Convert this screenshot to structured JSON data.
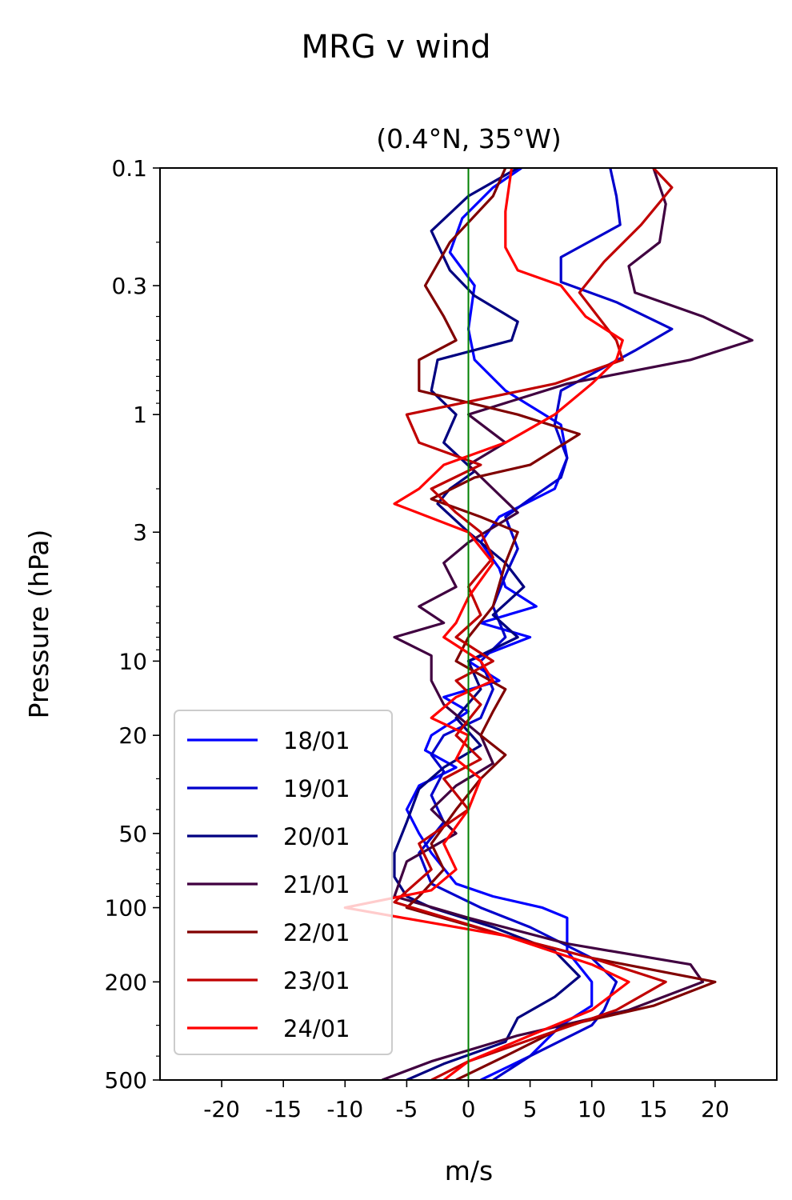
{
  "chart_data": {
    "type": "line",
    "suptitle": "MRG v wind",
    "title": "(0.4°N, 35°W)",
    "xlabel": "m/s",
    "ylabel": "Pressure (hPa)",
    "xlim": [
      -25,
      25
    ],
    "ylim": [
      500,
      0.1
    ],
    "yscale": "log",
    "xticks": [
      -20,
      -15,
      -10,
      -5,
      0,
      5,
      10,
      15,
      20
    ],
    "xtick_labels": [
      "-20",
      "-15",
      "-10",
      "-5",
      "0",
      "5",
      "10",
      "15",
      "20"
    ],
    "yticks": [
      0.1,
      0.3,
      1,
      3,
      10,
      20,
      50,
      100,
      200,
      500
    ],
    "ytick_labels": [
      "0.1",
      "0.3",
      "1",
      "3",
      "10",
      "20",
      "50",
      "100",
      "200",
      "500"
    ],
    "reference_line": {
      "x": 0,
      "color": "#008000"
    },
    "legend_position": "lower-left",
    "grid": false,
    "series": [
      {
        "name": "18/01",
        "color": "#0000ff",
        "points": [
          [
            4.3,
            0.1
          ],
          [
            2,
            0.12
          ],
          [
            -0.5,
            0.16
          ],
          [
            -1.5,
            0.22
          ],
          [
            0.5,
            0.3
          ],
          [
            0,
            0.45
          ],
          [
            0.5,
            0.6
          ],
          [
            3,
            0.8
          ],
          [
            7.5,
            1.1
          ],
          [
            8,
            1.5
          ],
          [
            7,
            2.0
          ],
          [
            2.5,
            2.6
          ],
          [
            1,
            3.3
          ],
          [
            2.5,
            4.2
          ],
          [
            3,
            5.0
          ],
          [
            5.5,
            6.0
          ],
          [
            1,
            7.0
          ],
          [
            5,
            8.0
          ],
          [
            0,
            10
          ],
          [
            2.5,
            12
          ],
          [
            -2,
            14
          ],
          [
            0,
            16
          ],
          [
            -3,
            20
          ],
          [
            -3.5,
            23
          ],
          [
            -1,
            27
          ],
          [
            -4,
            32
          ],
          [
            -5,
            40
          ],
          [
            -4,
            50
          ],
          [
            -3,
            60
          ],
          [
            -1,
            80
          ],
          [
            2,
            90
          ],
          [
            6,
            100
          ],
          [
            8,
            110
          ],
          [
            8,
            150
          ],
          [
            10,
            200
          ],
          [
            10,
            250
          ],
          [
            7.5,
            300
          ],
          [
            5,
            400
          ],
          [
            1,
            500
          ]
        ]
      },
      {
        "name": "19/01",
        "color": "#0000cc",
        "points": [
          [
            11.5,
            0.1
          ],
          [
            12,
            0.13
          ],
          [
            12.3,
            0.17
          ],
          [
            7.5,
            0.23
          ],
          [
            7.5,
            0.29
          ],
          [
            12,
            0.35
          ],
          [
            16.5,
            0.45
          ],
          [
            13.5,
            0.55
          ],
          [
            7.5,
            0.8
          ],
          [
            7,
            1.1
          ],
          [
            8,
            1.5
          ],
          [
            7.5,
            1.8
          ],
          [
            5,
            2.2
          ],
          [
            3,
            2.6
          ],
          [
            4,
            3.5
          ],
          [
            3,
            4.5
          ],
          [
            2,
            6.0
          ],
          [
            3,
            8.0
          ],
          [
            1,
            10
          ],
          [
            2,
            13
          ],
          [
            1,
            17
          ],
          [
            -2,
            20
          ],
          [
            -3,
            24
          ],
          [
            -2,
            28
          ],
          [
            -3,
            35
          ],
          [
            -2,
            45
          ],
          [
            -4,
            60
          ],
          [
            -3,
            80
          ],
          [
            1,
            100
          ],
          [
            5,
            120
          ],
          [
            10,
            160
          ],
          [
            12,
            200
          ],
          [
            11,
            260
          ],
          [
            10,
            300
          ],
          [
            5,
            400
          ],
          [
            2,
            500
          ]
        ]
      },
      {
        "name": "20/01",
        "color": "#000080",
        "points": [
          [
            4,
            0.1
          ],
          [
            0,
            0.13
          ],
          [
            -3,
            0.18
          ],
          [
            -1.5,
            0.26
          ],
          [
            0.5,
            0.33
          ],
          [
            4,
            0.42
          ],
          [
            3.5,
            0.5
          ],
          [
            -2.5,
            0.6
          ],
          [
            -3,
            0.8
          ],
          [
            -1,
            1.0
          ],
          [
            -2,
            1.3
          ],
          [
            0.5,
            1.7
          ],
          [
            -1.5,
            2.0
          ],
          [
            -2.5,
            2.3
          ],
          [
            0,
            3.0
          ],
          [
            3,
            4.0
          ],
          [
            4.5,
            5.0
          ],
          [
            2,
            6.5
          ],
          [
            4,
            8.0
          ],
          [
            0,
            10
          ],
          [
            1,
            13
          ],
          [
            -1,
            17
          ],
          [
            1,
            22
          ],
          [
            -2,
            27
          ],
          [
            -4,
            33
          ],
          [
            -5,
            45
          ],
          [
            -6,
            60
          ],
          [
            -6,
            75
          ],
          [
            -5,
            90
          ],
          [
            -3,
            100
          ],
          [
            2,
            120
          ],
          [
            7,
            150
          ],
          [
            9,
            190
          ],
          [
            7,
            230
          ],
          [
            4,
            280
          ],
          [
            3,
            350
          ],
          [
            -2,
            430
          ],
          [
            -5,
            500
          ]
        ]
      },
      {
        "name": "21/01",
        "color": "#400040",
        "points": [
          [
            15,
            0.1
          ],
          [
            16,
            0.14
          ],
          [
            15.5,
            0.2
          ],
          [
            13,
            0.25
          ],
          [
            13.5,
            0.32
          ],
          [
            19,
            0.4
          ],
          [
            23,
            0.5
          ],
          [
            18,
            0.6
          ],
          [
            8,
            0.75
          ],
          [
            0,
            1.0
          ],
          [
            3,
            1.3
          ],
          [
            0,
            1.6
          ],
          [
            2,
            2.0
          ],
          [
            4,
            2.5
          ],
          [
            0,
            3.3
          ],
          [
            -2,
            4.0
          ],
          [
            -1,
            5.0
          ],
          [
            -4,
            6.0
          ],
          [
            -2,
            7.0
          ],
          [
            -6,
            8.0
          ],
          [
            -3,
            9.5
          ],
          [
            -3,
            12
          ],
          [
            -2,
            15
          ],
          [
            1,
            20
          ],
          [
            2,
            26
          ],
          [
            -1,
            32
          ],
          [
            -3,
            40
          ],
          [
            -1,
            50
          ],
          [
            -5,
            65
          ],
          [
            -6,
            90
          ],
          [
            0,
            110
          ],
          [
            8,
            140
          ],
          [
            18,
            170
          ],
          [
            19,
            200
          ],
          [
            13,
            260
          ],
          [
            4,
            330
          ],
          [
            -3,
            420
          ],
          [
            -7,
            500
          ]
        ]
      },
      {
        "name": "22/01",
        "color": "#800000",
        "points": [
          [
            3,
            0.1
          ],
          [
            2,
            0.13
          ],
          [
            -1.5,
            0.2
          ],
          [
            -3.5,
            0.3
          ],
          [
            -2,
            0.4
          ],
          [
            -1,
            0.5
          ],
          [
            -4,
            0.6
          ],
          [
            -4,
            0.8
          ],
          [
            4,
            1.0
          ],
          [
            9,
            1.2
          ],
          [
            5,
            1.6
          ],
          [
            0.5,
            1.8
          ],
          [
            -3,
            2.2
          ],
          [
            1,
            2.6
          ],
          [
            4,
            3.0
          ],
          [
            3,
            4.0
          ],
          [
            2,
            6.0
          ],
          [
            0,
            8.0
          ],
          [
            -1,
            10
          ],
          [
            3,
            13
          ],
          [
            2,
            16
          ],
          [
            1,
            20
          ],
          [
            3,
            24
          ],
          [
            1,
            30
          ],
          [
            -1,
            40
          ],
          [
            -3,
            55
          ],
          [
            -2,
            70
          ],
          [
            -4,
            90
          ],
          [
            -5,
            100
          ],
          [
            3,
            130
          ],
          [
            10,
            160
          ],
          [
            20,
            200
          ],
          [
            15,
            250
          ],
          [
            8,
            300
          ],
          [
            3,
            400
          ],
          [
            -1,
            500
          ]
        ]
      },
      {
        "name": "23/01",
        "color": "#c00000",
        "points": [
          [
            15,
            0.1
          ],
          [
            16.5,
            0.12
          ],
          [
            14,
            0.17
          ],
          [
            11,
            0.24
          ],
          [
            9,
            0.32
          ],
          [
            10.5,
            0.4
          ],
          [
            12,
            0.5
          ],
          [
            12.5,
            0.6
          ],
          [
            7,
            0.75
          ],
          [
            -5,
            1.0
          ],
          [
            -4,
            1.3
          ],
          [
            1,
            1.6
          ],
          [
            -3,
            2.0
          ],
          [
            -1,
            2.5
          ],
          [
            1,
            3.0
          ],
          [
            2,
            3.8
          ],
          [
            0,
            5.0
          ],
          [
            1,
            6.5
          ],
          [
            -1,
            8.0
          ],
          [
            2,
            10
          ],
          [
            -1,
            12
          ],
          [
            1,
            15
          ],
          [
            -1,
            20
          ],
          [
            1,
            25
          ],
          [
            -2,
            30
          ],
          [
            0,
            40
          ],
          [
            -4,
            55
          ],
          [
            -3,
            70
          ],
          [
            -6,
            95
          ],
          [
            3,
            130
          ],
          [
            10,
            160
          ],
          [
            16,
            200
          ],
          [
            12,
            260
          ],
          [
            6,
            330
          ],
          [
            0,
            420
          ],
          [
            -3,
            500
          ]
        ]
      },
      {
        "name": "24/01",
        "color": "#ff0000",
        "points": [
          [
            3.5,
            0.1
          ],
          [
            3,
            0.15
          ],
          [
            3,
            0.21
          ],
          [
            4,
            0.26
          ],
          [
            7.5,
            0.3
          ],
          [
            9.5,
            0.4
          ],
          [
            12.5,
            0.5
          ],
          [
            12,
            0.6
          ],
          [
            10,
            0.75
          ],
          [
            7,
            1.0
          ],
          [
            3,
            1.3
          ],
          [
            -2,
            1.6
          ],
          [
            -4,
            2.0
          ],
          [
            -6,
            2.3
          ],
          [
            0,
            3.0
          ],
          [
            2,
            4.0
          ],
          [
            0,
            5.5
          ],
          [
            -1,
            7.0
          ],
          [
            -2,
            8.0
          ],
          [
            1,
            10
          ],
          [
            2,
            12
          ],
          [
            -1,
            14
          ],
          [
            -3,
            17
          ],
          [
            0,
            20
          ],
          [
            -1,
            25
          ],
          [
            1,
            30
          ],
          [
            0,
            40
          ],
          [
            -2,
            55
          ],
          [
            -1,
            70
          ],
          [
            -3,
            85
          ],
          [
            -10,
            100
          ],
          [
            3,
            130
          ],
          [
            10,
            170
          ],
          [
            13,
            200
          ],
          [
            10,
            260
          ],
          [
            5,
            330
          ],
          [
            0,
            420
          ],
          [
            -2,
            500
          ]
        ]
      }
    ]
  }
}
